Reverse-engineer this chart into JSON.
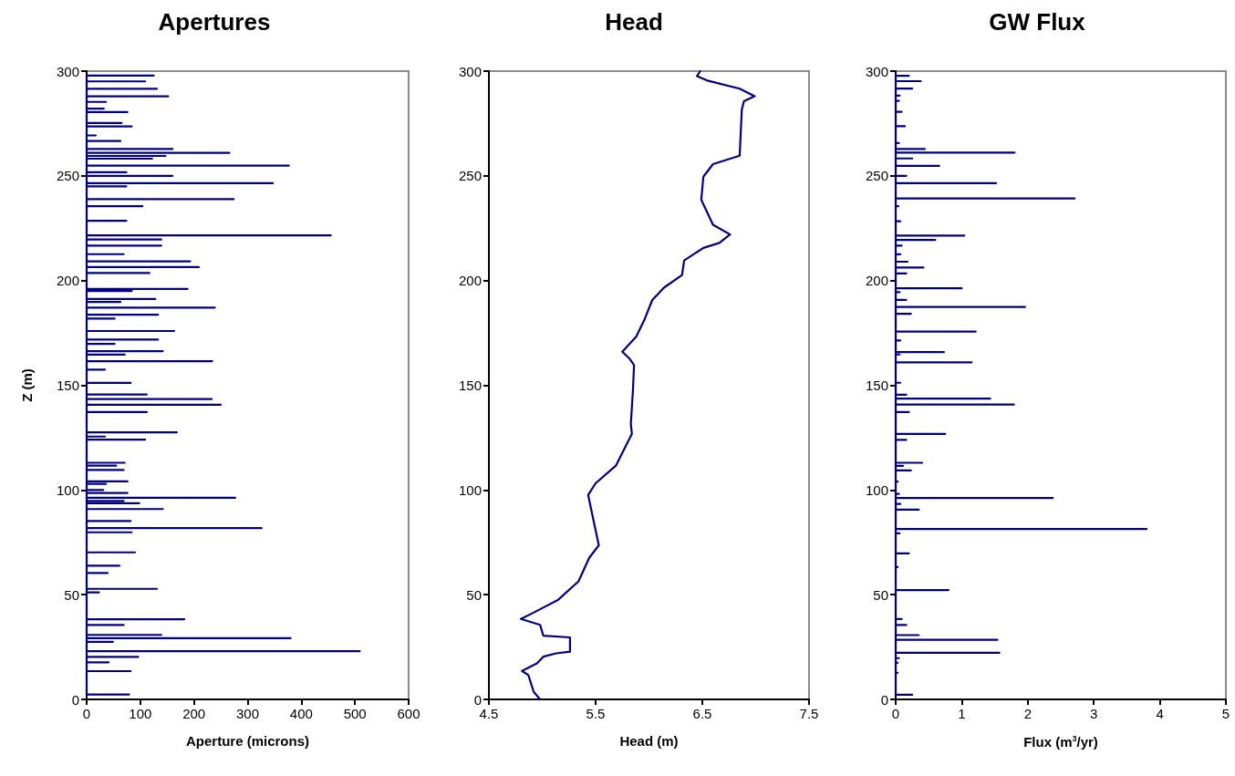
{
  "chart_data": [
    {
      "type": "line",
      "title": "Apertures",
      "xlabel": "Aperture (microns)",
      "ylabel": "Z (m)",
      "xlim": [
        0,
        600
      ],
      "xticks": [
        0,
        100,
        200,
        300,
        400,
        500,
        600
      ],
      "ylim": [
        0,
        300
      ],
      "yticks": [
        0,
        50,
        100,
        150,
        200,
        250,
        300
      ],
      "grid": false,
      "marker": "none",
      "line_style": "solid",
      "series": [
        {
          "color": "#000080",
          "x": [
            0,
            79,
            0,
            0,
            82,
            0,
            0,
            41,
            0,
            0,
            96,
            0,
            0,
            509,
            0,
            0,
            49,
            0,
            0,
            380,
            0,
            0,
            139,
            0,
            0,
            69,
            0,
            0,
            182,
            0,
            0,
            23,
            0,
            0,
            131,
            0,
            0,
            39,
            0,
            0,
            61,
            0,
            0,
            90,
            0,
            0,
            84,
            0,
            0,
            326,
            0,
            0,
            82,
            0,
            0,
            142,
            0,
            0,
            98,
            0,
            0,
            69,
            0,
            0,
            277,
            0,
            0,
            76,
            0,
            0,
            31,
            0,
            0,
            36,
            0,
            0,
            76,
            0,
            0,
            69,
            0,
            0,
            55,
            0,
            0,
            71,
            0,
            0,
            109,
            0,
            0,
            34,
            0,
            0,
            168,
            0,
            0,
            112,
            0,
            0,
            250,
            0,
            0,
            233,
            0,
            0,
            112,
            0,
            0,
            82,
            0,
            0,
            34,
            0,
            0,
            234,
            0,
            0,
            71,
            0,
            0,
            142,
            0,
            0,
            52,
            0,
            0,
            133,
            0,
            0,
            163,
            0,
            0,
            52,
            0,
            0,
            133,
            0,
            0,
            239,
            0,
            0,
            63,
            0,
            0,
            128,
            0,
            0,
            84,
            0,
            0,
            188,
            0,
            0,
            117,
            0,
            0,
            209,
            0,
            0,
            193,
            0,
            0,
            69,
            0,
            0,
            139,
            0,
            0,
            139,
            0,
            0,
            455,
            0,
            0,
            74,
            0,
            0,
            104,
            0,
            0,
            274,
            0,
            0,
            74,
            0,
            0,
            347,
            0,
            0,
            160,
            0,
            0,
            74,
            0,
            0,
            377,
            0,
            0,
            122,
            0,
            0,
            147,
            0,
            0,
            266,
            0,
            0,
            160,
            0,
            0,
            63,
            0,
            0,
            17,
            0,
            0,
            84,
            0,
            0,
            65,
            0,
            0,
            76,
            0,
            0,
            32,
            0,
            0,
            36,
            0,
            0,
            152,
            0,
            0,
            131,
            0,
            0,
            109,
            0,
            0,
            125,
            0
          ],
          "values": [
            2.3,
            2.3,
            2.3,
            13.5,
            13.5,
            13.5,
            17.7,
            17.7,
            17.7,
            20.3,
            20.3,
            20.3,
            23,
            23,
            23,
            27.5,
            27.5,
            27.5,
            29.2,
            29.2,
            29.2,
            30.8,
            30.8,
            30.8,
            35.5,
            35.5,
            35.5,
            38.3,
            38.3,
            38.3,
            51.1,
            51.1,
            51.1,
            52.8,
            52.8,
            52.8,
            60.4,
            60.4,
            60.4,
            63.8,
            63.8,
            63.8,
            70.2,
            70.2,
            70.2,
            79.8,
            79.8,
            79.8,
            81.8,
            81.8,
            81.8,
            85.2,
            85.2,
            85.2,
            90.9,
            90.9,
            90.9,
            93.7,
            93.7,
            93.7,
            94.8,
            94.8,
            94.8,
            96.3,
            96.3,
            96.3,
            98.6,
            98.6,
            98.6,
            100,
            100,
            100,
            102.9,
            102.9,
            102.9,
            104.1,
            104.1,
            104.1,
            109.6,
            109.6,
            109.6,
            111.6,
            111.6,
            111.6,
            113,
            113,
            113,
            124,
            124,
            124,
            125.5,
            125.5,
            125.5,
            127.5,
            127.5,
            127.5,
            137.2,
            137.2,
            137.2,
            140.7,
            140.7,
            140.7,
            143.4,
            143.4,
            143.4,
            145.6,
            145.6,
            145.6,
            151.1,
            151.1,
            151.1,
            157.5,
            157.5,
            157.5,
            161.5,
            161.5,
            161.5,
            164.6,
            164.6,
            164.6,
            166.3,
            166.3,
            166.3,
            169.8,
            169.8,
            169.8,
            171.8,
            171.8,
            171.8,
            175.9,
            175.9,
            175.9,
            181.8,
            181.8,
            181.8,
            183.7,
            183.7,
            183.7,
            187.1,
            187.1,
            187.1,
            189.8,
            189.8,
            189.8,
            191.2,
            191.2,
            191.2,
            195,
            195,
            195,
            196,
            196,
            196,
            203.6,
            203.6,
            203.6,
            206.4,
            206.4,
            206.4,
            209.2,
            209.2,
            209.2,
            212.6,
            212.6,
            212.6,
            216.7,
            216.7,
            216.7,
            219.6,
            219.6,
            219.6,
            221.6,
            221.6,
            221.6,
            228.5,
            228.5,
            228.5,
            235.5,
            235.5,
            235.5,
            238.9,
            238.9,
            238.9,
            245,
            245,
            245,
            246.5,
            246.5,
            246.5,
            250,
            250,
            250,
            251.7,
            251.7,
            251.7,
            254.9,
            254.9,
            254.9,
            258.2,
            258.2,
            258.2,
            259.5,
            259.5,
            259.5,
            261,
            261,
            261,
            262.8,
            262.8,
            262.8,
            266.6,
            266.6,
            266.6,
            269.3,
            269.3,
            269.3,
            273.6,
            273.6,
            273.6,
            275.2,
            275.2,
            275.2,
            280.5,
            280.5,
            280.5,
            282.1,
            282.1,
            282.1,
            285.3,
            285.3,
            285.3,
            288,
            288,
            288,
            291.6,
            291.6,
            291.6,
            295.1,
            295.1,
            295.1,
            297.9,
            297.9,
            297.9
          ]
        }
      ]
    },
    {
      "type": "line",
      "title": "Head",
      "xlabel": "Head (m)",
      "xlim": [
        4.5,
        7.5
      ],
      "xticks": [
        4.5,
        5.5,
        6.5,
        7.5
      ],
      "ylim": [
        0,
        300
      ],
      "yticks": [
        0,
        50,
        100,
        150,
        200,
        250,
        300
      ],
      "grid": false,
      "marker": "none",
      "line_style": "solid",
      "series": [
        {
          "color": "#000080",
          "x": [
            4.98,
            4.92,
            4.87,
            4.81,
            4.95,
            5.01,
            5.13,
            5.26,
            5.26,
            5.01,
            4.98,
            4.8,
            4.91,
            5.15,
            5.34,
            5.44,
            5.53,
            5.48,
            5.43,
            5.5,
            5.69,
            5.84,
            5.83,
            5.85,
            5.86,
            5.82,
            5.75,
            5.88,
            5.96,
            6.03,
            6.14,
            6.31,
            6.33,
            6.51,
            6.66,
            6.76,
            6.6,
            6.49,
            6.51,
            6.6,
            6.85,
            6.87,
            6.89,
            6.99,
            6.85,
            6.54,
            6.45,
            6.48
          ],
          "values": [
            0,
            3.6,
            11.6,
            13.6,
            17.2,
            20.4,
            22,
            22.8,
            29.6,
            30.4,
            35.6,
            38.4,
            41.2,
            47.6,
            56.4,
            67.6,
            73.6,
            85.6,
            97.6,
            103.2,
            111.6,
            126.8,
            131.6,
            147.6,
            159.6,
            162.6,
            166,
            173.2,
            181.6,
            190.6,
            196.6,
            202.6,
            209.6,
            215.6,
            218,
            222,
            226.6,
            238.6,
            249.6,
            255.6,
            259.6,
            281.6,
            285.6,
            288,
            291.6,
            295.6,
            297.6,
            300
          ]
        }
      ]
    },
    {
      "type": "line",
      "title": "GW Flux",
      "xlabel": "Flux (m$^{3}$/yr)",
      "xlim": [
        0,
        5
      ],
      "xticks": [
        0,
        1,
        2,
        3,
        4,
        5
      ],
      "ylim": [
        0,
        300
      ],
      "yticks": [
        0,
        50,
        100,
        150,
        200,
        250,
        300
      ],
      "grid": false,
      "marker": "none",
      "line_style": "solid",
      "series": [
        {
          "color": "#000080",
          "x": [
            0,
            0.25,
            0,
            0,
            0.03,
            0,
            0,
            0.03,
            0,
            0,
            0.05,
            0,
            0,
            1.57,
            0,
            0,
            1.54,
            0,
            0,
            0.35,
            0,
            0,
            0.16,
            0,
            0,
            0.09,
            0,
            0,
            0.8,
            0,
            0,
            0.03,
            0,
            0,
            0.2,
            0,
            0,
            0.06,
            0,
            0,
            3.8,
            0,
            0,
            0.35,
            0,
            0,
            0.07,
            0,
            0,
            2.38,
            0,
            0,
            0.05,
            0,
            0,
            0.03,
            0,
            0,
            0.23,
            0,
            0,
            0.11,
            0,
            0,
            0.4,
            0,
            0,
            0.16,
            0,
            0,
            0.75,
            0,
            0,
            0.2,
            0,
            0,
            1.79,
            0,
            0,
            1.43,
            0,
            0,
            0.16,
            0,
            0,
            0.07,
            0,
            0,
            1.15,
            0,
            0,
            0.06,
            0,
            0,
            0.73,
            0,
            0,
            0.07,
            0,
            0,
            1.21,
            0,
            0,
            0.23,
            0,
            0,
            1.96,
            0,
            0,
            0.16,
            0,
            0,
            0.06,
            0,
            0,
            1,
            0,
            0,
            0.16,
            0,
            0,
            0.42,
            0,
            0,
            0.18,
            0,
            0,
            0.07,
            0,
            0,
            0.09,
            0,
            0,
            0.6,
            0,
            0,
            1.04,
            0,
            0,
            0.07,
            0,
            0,
            0.04,
            0,
            0,
            2.71,
            0,
            0,
            1.52,
            0,
            0,
            0.16,
            0,
            0,
            0.66,
            0,
            0,
            0.25,
            0,
            0,
            1.8,
            0,
            0,
            0.44,
            0,
            0,
            0.05,
            0,
            0,
            0.14,
            0,
            0,
            0.09,
            0,
            0,
            0.05,
            0,
            0,
            0.06,
            0,
            0,
            0.25,
            0,
            0,
            0.38,
            0,
            0,
            0.2,
            0
          ],
          "values": [
            2.2,
            2.2,
            2.2,
            12.7,
            12.7,
            12.7,
            17.5,
            17.5,
            17.5,
            19.7,
            19.7,
            19.7,
            22.3,
            22.3,
            22.3,
            28.5,
            28.5,
            28.5,
            30.7,
            30.7,
            30.7,
            35.5,
            35.5,
            35.5,
            38.4,
            38.4,
            38.4,
            52.2,
            52.2,
            52.2,
            63.2,
            63.2,
            63.2,
            69.7,
            69.7,
            69.7,
            79.3,
            79.3,
            79.3,
            81.4,
            81.4,
            81.4,
            90.6,
            90.6,
            90.6,
            93.3,
            93.3,
            93.3,
            96.2,
            96.2,
            96.2,
            98.1,
            98.1,
            98.1,
            104,
            104,
            104,
            109.3,
            109.3,
            109.3,
            111.5,
            111.5,
            111.5,
            113,
            113,
            113,
            123.9,
            123.9,
            123.9,
            126.8,
            126.8,
            126.8,
            137.2,
            137.2,
            137.2,
            140.8,
            140.8,
            140.8,
            143.6,
            143.6,
            143.6,
            145.5,
            145.5,
            145.5,
            151.2,
            151.2,
            151.2,
            160.9,
            160.9,
            160.9,
            164.7,
            164.7,
            164.7,
            165.8,
            165.8,
            165.8,
            171.4,
            171.4,
            171.4,
            175.6,
            175.6,
            175.6,
            184.1,
            184.1,
            184.1,
            187.4,
            187.4,
            187.4,
            190.8,
            190.8,
            190.8,
            194.5,
            194.5,
            194.5,
            196.3,
            196.3,
            196.3,
            203.4,
            203.4,
            203.4,
            206.2,
            206.2,
            206.2,
            209,
            209,
            209,
            212.5,
            212.5,
            212.5,
            216.7,
            216.7,
            216.7,
            219.4,
            219.4,
            219.4,
            221.5,
            221.5,
            221.5,
            228.3,
            228.3,
            228.3,
            235.5,
            235.5,
            235.5,
            239.2,
            239.2,
            239.2,
            246.5,
            246.5,
            246.5,
            250,
            250,
            250,
            254.8,
            254.8,
            254.8,
            258.3,
            258.3,
            258.3,
            261.1,
            261.1,
            261.1,
            262.8,
            262.8,
            262.8,
            265.7,
            265.7,
            265.7,
            273.7,
            273.7,
            273.7,
            280.6,
            280.6,
            280.6,
            285.8,
            285.8,
            285.8,
            288.3,
            288.3,
            288.3,
            291.7,
            291.7,
            291.7,
            295.2,
            295.2,
            295.2,
            297.8,
            297.8,
            297.8
          ]
        }
      ]
    }
  ]
}
